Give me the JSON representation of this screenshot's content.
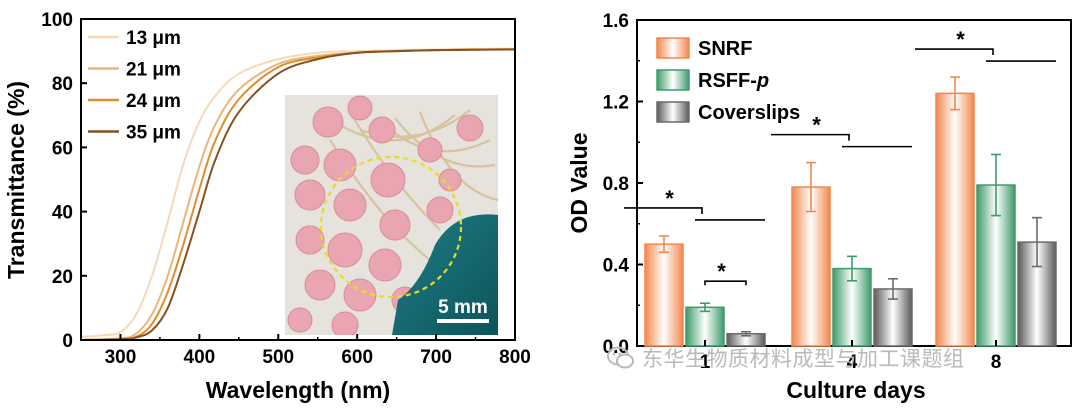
{
  "watermark": "东华生物质材料成型与加工课题组",
  "photo": {
    "scale_bar_label": "5 mm"
  },
  "chart_data": [
    {
      "type": "line",
      "xlabel": "Wavelength (nm)",
      "ylabel": "Transmittance (%)",
      "xlim": [
        250,
        800
      ],
      "ylim": [
        0,
        100
      ],
      "xticks": [
        300,
        400,
        500,
        600,
        700,
        800
      ],
      "yticks": [
        0,
        20,
        40,
        60,
        80,
        100
      ],
      "legend": "top-left",
      "series": [
        {
          "name": "13 μm",
          "color": "#f8d9b7",
          "x": [
            250,
            280,
            300,
            320,
            340,
            360,
            380,
            400,
            420,
            450,
            500,
            550,
            600,
            650,
            700,
            800
          ],
          "y": [
            1,
            1.5,
            2.5,
            8,
            20,
            37,
            55,
            68,
            76,
            83,
            87.5,
            89.5,
            90,
            90.3,
            90.5,
            90.8
          ]
        },
        {
          "name": "21 μm",
          "color": "#eab57c",
          "x": [
            250,
            300,
            320,
            340,
            360,
            380,
            400,
            420,
            450,
            500,
            550,
            600,
            650,
            700,
            800
          ],
          "y": [
            0,
            0.5,
            2,
            8,
            20,
            37,
            54,
            67,
            78,
            86,
            88.5,
            89.5,
            90,
            90.3,
            90.6
          ]
        },
        {
          "name": "24 μm",
          "color": "#de8d30",
          "x": [
            250,
            300,
            320,
            340,
            360,
            380,
            400,
            420,
            450,
            500,
            550,
            600,
            650,
            700,
            800
          ],
          "y": [
            0,
            0.3,
            1,
            5,
            15,
            30,
            47,
            62,
            75,
            85,
            88,
            89.5,
            90,
            90.3,
            90.6
          ]
        },
        {
          "name": "35 μm",
          "color": "#87511c",
          "x": [
            250,
            300,
            320,
            340,
            360,
            380,
            400,
            420,
            450,
            500,
            550,
            600,
            650,
            700,
            800
          ],
          "y": [
            0,
            0.2,
            0.8,
            3,
            10,
            24,
            40,
            56,
            71,
            83,
            87.5,
            89.5,
            90,
            90.3,
            90.5
          ]
        }
      ]
    },
    {
      "type": "bar",
      "xlabel": "Culture days",
      "ylabel": "OD Value",
      "categories": [
        "1",
        "4",
        "8"
      ],
      "ylim": [
        0,
        1.6
      ],
      "yticks": [
        "0.0",
        "0.4",
        "0.8",
        "1.2",
        "1.6"
      ],
      "legend": "top-left",
      "significance_label": "*",
      "series": [
        {
          "name": "SNRF",
          "color": "#f2874c",
          "values": [
            0.5,
            0.78,
            1.24
          ],
          "errors": [
            0.04,
            0.12,
            0.08
          ]
        },
        {
          "name": "RSFF-p",
          "color": "#3f9b6a",
          "values": [
            0.19,
            0.38,
            0.79
          ],
          "errors": [
            0.02,
            0.06,
            0.15
          ]
        },
        {
          "name": "Coverslips",
          "color": "#6a6a6a",
          "values": [
            0.06,
            0.28,
            0.51
          ],
          "errors": [
            0.01,
            0.05,
            0.12
          ]
        }
      ]
    }
  ]
}
